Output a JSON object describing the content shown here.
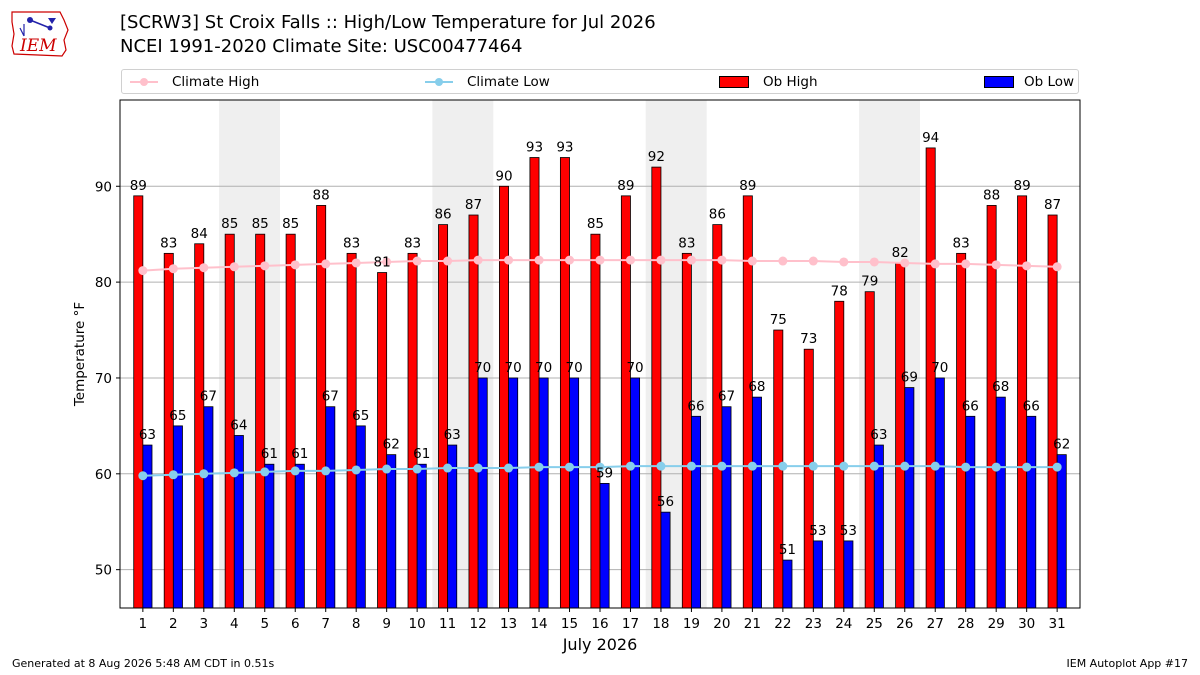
{
  "header": {
    "title_line1": "[SCRW3] St Croix Falls :: High/Low Temperature for Jul 2026",
    "title_line2": "NCEI 1991-2020 Climate Site: USC00477464"
  },
  "logo": {
    "text": "IEM",
    "color": "#cc0000"
  },
  "footer": {
    "generated": "Generated at 8 Aug 2026 5:48 AM CDT in 0.51s",
    "app": "IEM Autoplot App #17"
  },
  "legend": {
    "climate_high": "Climate High",
    "climate_low": "Climate Low",
    "ob_high": "Ob High",
    "ob_low": "Ob Low"
  },
  "colors": {
    "ob_high": "#ff0000",
    "ob_low": "#0000ff",
    "climate_high": "#ffc0cb",
    "climate_low": "#87ceeb",
    "weekend_band": "#efefef"
  },
  "chart_data": {
    "type": "bar",
    "xlabel": "July 2026",
    "ylabel": "Temperature °F",
    "ylim": [
      46,
      99
    ],
    "yticks": [
      50,
      60,
      70,
      80,
      90
    ],
    "grid": true,
    "legend_position": "top",
    "categories": [
      1,
      2,
      3,
      4,
      5,
      6,
      7,
      8,
      9,
      10,
      11,
      12,
      13,
      14,
      15,
      16,
      17,
      18,
      19,
      20,
      21,
      22,
      23,
      24,
      25,
      26,
      27,
      28,
      29,
      30,
      31
    ],
    "shaded_days": [
      4,
      5,
      11,
      12,
      18,
      19,
      25,
      26
    ],
    "series": [
      {
        "name": "Ob High",
        "type": "bar",
        "values": [
          89,
          83,
          84,
          85,
          85,
          85,
          88,
          83,
          81,
          83,
          86,
          87,
          90,
          93,
          93,
          85,
          89,
          92,
          83,
          86,
          89,
          75,
          73,
          78,
          79,
          82,
          94,
          83,
          88,
          89,
          87
        ]
      },
      {
        "name": "Ob Low",
        "type": "bar",
        "values": [
          63,
          65,
          67,
          64,
          61,
          61,
          67,
          65,
          62,
          61,
          63,
          70,
          70,
          70,
          70,
          59,
          70,
          56,
          66,
          67,
          68,
          51,
          53,
          53,
          63,
          69,
          70,
          66,
          68,
          66,
          62
        ]
      },
      {
        "name": "Climate High",
        "type": "line",
        "values": [
          81.2,
          81.4,
          81.5,
          81.6,
          81.7,
          81.8,
          81.9,
          82.0,
          82.1,
          82.2,
          82.2,
          82.3,
          82.3,
          82.3,
          82.3,
          82.3,
          82.3,
          82.3,
          82.3,
          82.3,
          82.2,
          82.2,
          82.2,
          82.1,
          82.1,
          82.0,
          81.9,
          81.9,
          81.8,
          81.7,
          81.6
        ]
      },
      {
        "name": "Climate Low",
        "type": "line",
        "values": [
          59.8,
          59.9,
          60.0,
          60.1,
          60.2,
          60.3,
          60.3,
          60.4,
          60.5,
          60.5,
          60.6,
          60.6,
          60.6,
          60.7,
          60.7,
          60.7,
          60.8,
          60.8,
          60.8,
          60.8,
          60.8,
          60.8,
          60.8,
          60.8,
          60.8,
          60.8,
          60.8,
          60.7,
          60.7,
          60.7,
          60.7
        ]
      }
    ]
  }
}
